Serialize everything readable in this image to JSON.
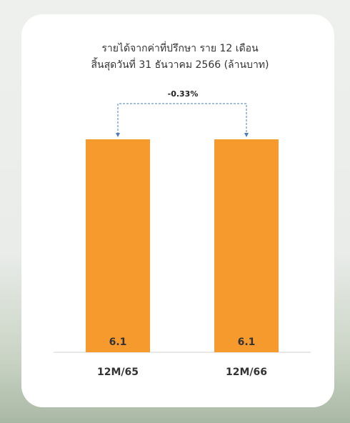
{
  "chart_data": {
    "type": "bar",
    "title": [
      "รายได้จากค่าที่ปรึกษา ราย 12 เดือน",
      "สิ้นสุดวันที่ 31 ธันวาคม 2566 (ล้านบาท)"
    ],
    "categories": [
      "12M/65",
      "12M/66"
    ],
    "values": [
      6.1,
      6.1
    ],
    "color": "#f79a2e",
    "annotation": "-0.33%",
    "annotation_color": "#4a7ebb"
  }
}
